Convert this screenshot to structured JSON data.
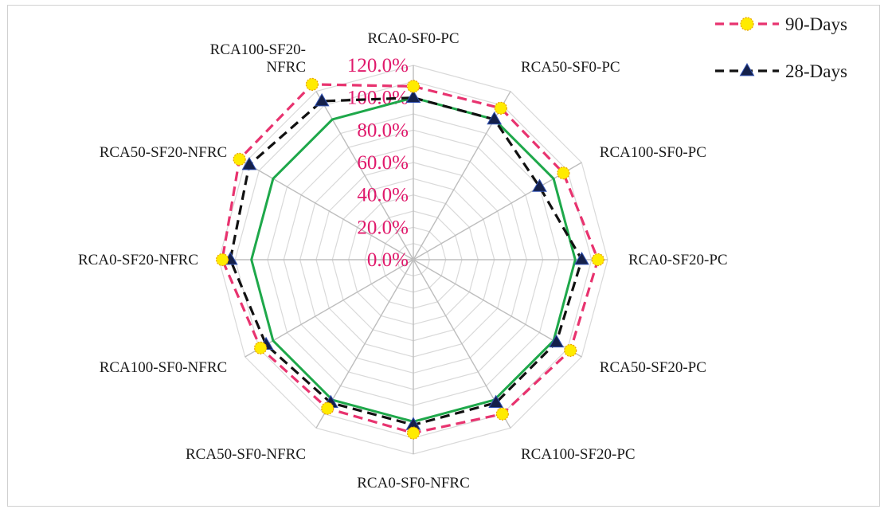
{
  "chart_data": {
    "type": "radar",
    "title": "",
    "categories": [
      "RCA0-SF0-PC",
      "RCA50-SF0-PC",
      "RCA100-SF0-PC",
      "RCA0-SF20-PC",
      "RCA50-SF20-PC",
      "RCA100-SF20-PC",
      "RCA0-SF0-NFRC",
      "RCA50-SF0-NFRC",
      "RCA100-SF0-NFRC",
      "RCA0-SF20-NFRC",
      "RCA50-SF20-NFRC",
      "RCA100-SF20-\nNFRC"
    ],
    "radial_ticks": [
      "0.0%",
      "20.0%",
      "40.0%",
      "60.0%",
      "80.0%",
      "100.0%",
      "120.0%"
    ],
    "radial_range": [
      0,
      120
    ],
    "radial_step": 20,
    "grid": true,
    "legend_position": "top-right",
    "series": [
      {
        "name": "90-Days",
        "values": [
          107,
          108,
          107,
          114,
          112,
          110,
          107,
          106,
          109,
          118,
          124,
          125
        ],
        "color": "#e8336f",
        "marker": "circle",
        "marker_fill": "#ffeb00",
        "dash": "dashed"
      },
      {
        "name": "28-Days",
        "values": [
          100,
          100,
          90,
          104,
          102,
          102,
          102,
          102,
          105,
          113,
          117,
          113
        ],
        "color": "#111111",
        "marker": "triangle",
        "marker_fill": "#14204a",
        "dash": "dashed"
      },
      {
        "name": "",
        "values": [
          100,
          100,
          100,
          100,
          100,
          100,
          100,
          100,
          100,
          100,
          100,
          100
        ],
        "color": "#1ea84a",
        "marker": "none",
        "dash": "solid",
        "show_in_legend": false
      }
    ]
  }
}
